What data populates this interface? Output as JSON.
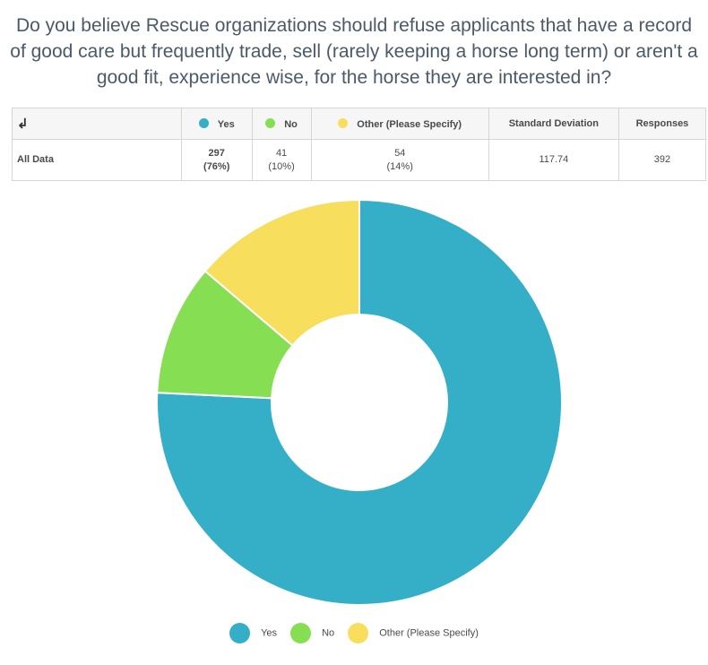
{
  "question": "Do you believe Rescue organizations should refuse applicants that have a record of good care but frequently trade, sell (rarely keeping a horse long term) or aren't a good fit, experience wise, for the horse they are interested in?",
  "table": {
    "headers": {
      "yes": "Yes",
      "no": "No",
      "other": "Other (Please Specify)",
      "std_dev": "Standard Deviation",
      "responses": "Responses"
    },
    "row": {
      "label": "All Data",
      "yes_count": "297",
      "yes_pct": "(76%)",
      "no_count": "41",
      "no_pct": "(10%)",
      "other_count": "54",
      "other_pct": "(14%)",
      "std_dev": "117.74",
      "responses": "392"
    }
  },
  "colors": {
    "yes": "#35AEC8",
    "no": "#86DE52",
    "other": "#F7DE5D"
  },
  "icons": {
    "swap": "swap-icon"
  },
  "chart_data": {
    "type": "pie",
    "style": "donut",
    "categories": [
      "Yes",
      "No",
      "Other (Please Specify)"
    ],
    "values": [
      297,
      41,
      54
    ],
    "colors": [
      "#35AEC8",
      "#86DE52",
      "#F7DE5D"
    ],
    "legend": "bottom"
  },
  "legend": {
    "yes": "Yes",
    "no": "No",
    "other": "Other (Please Specify)"
  }
}
